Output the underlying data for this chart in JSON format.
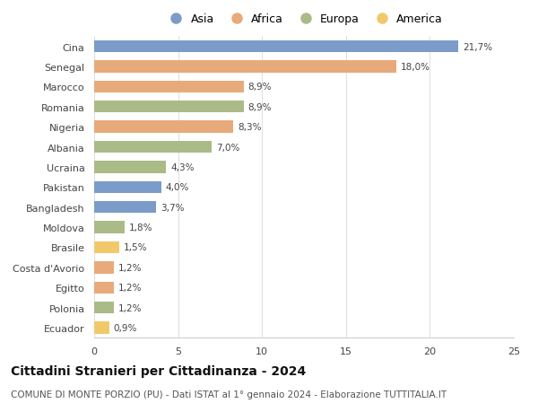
{
  "categories": [
    "Cina",
    "Senegal",
    "Marocco",
    "Romania",
    "Nigeria",
    "Albania",
    "Ucraina",
    "Pakistan",
    "Bangladesh",
    "Moldova",
    "Brasile",
    "Costa d'Avorio",
    "Egitto",
    "Polonia",
    "Ecuador"
  ],
  "values": [
    21.7,
    18.0,
    8.9,
    8.9,
    8.3,
    7.0,
    4.3,
    4.0,
    3.7,
    1.8,
    1.5,
    1.2,
    1.2,
    1.2,
    0.9
  ],
  "labels": [
    "21,7%",
    "18,0%",
    "8,9%",
    "8,9%",
    "8,3%",
    "7,0%",
    "4,3%",
    "4,0%",
    "3,7%",
    "1,8%",
    "1,5%",
    "1,2%",
    "1,2%",
    "1,2%",
    "0,9%"
  ],
  "continents": [
    "Asia",
    "Africa",
    "Africa",
    "Europa",
    "Africa",
    "Europa",
    "Europa",
    "Asia",
    "Asia",
    "Europa",
    "America",
    "Africa",
    "Africa",
    "Europa",
    "America"
  ],
  "continent_colors": {
    "Asia": "#7B9CC8",
    "Africa": "#E8AA7A",
    "Europa": "#AABB88",
    "America": "#F2C96A"
  },
  "legend_order": [
    "Asia",
    "Africa",
    "Europa",
    "America"
  ],
  "title": "Cittadini Stranieri per Cittadinanza - 2024",
  "subtitle": "COMUNE DI MONTE PORZIO (PU) - Dati ISTAT al 1° gennaio 2024 - Elaborazione TUTTITALIA.IT",
  "xlim": [
    0,
    25
  ],
  "xticks": [
    0,
    5,
    10,
    15,
    20,
    25
  ],
  "background_color": "#ffffff",
  "bar_height": 0.6,
  "title_fontsize": 10,
  "subtitle_fontsize": 7.5,
  "label_fontsize": 7.5,
  "ytick_fontsize": 8,
  "xtick_fontsize": 8,
  "legend_fontsize": 9
}
